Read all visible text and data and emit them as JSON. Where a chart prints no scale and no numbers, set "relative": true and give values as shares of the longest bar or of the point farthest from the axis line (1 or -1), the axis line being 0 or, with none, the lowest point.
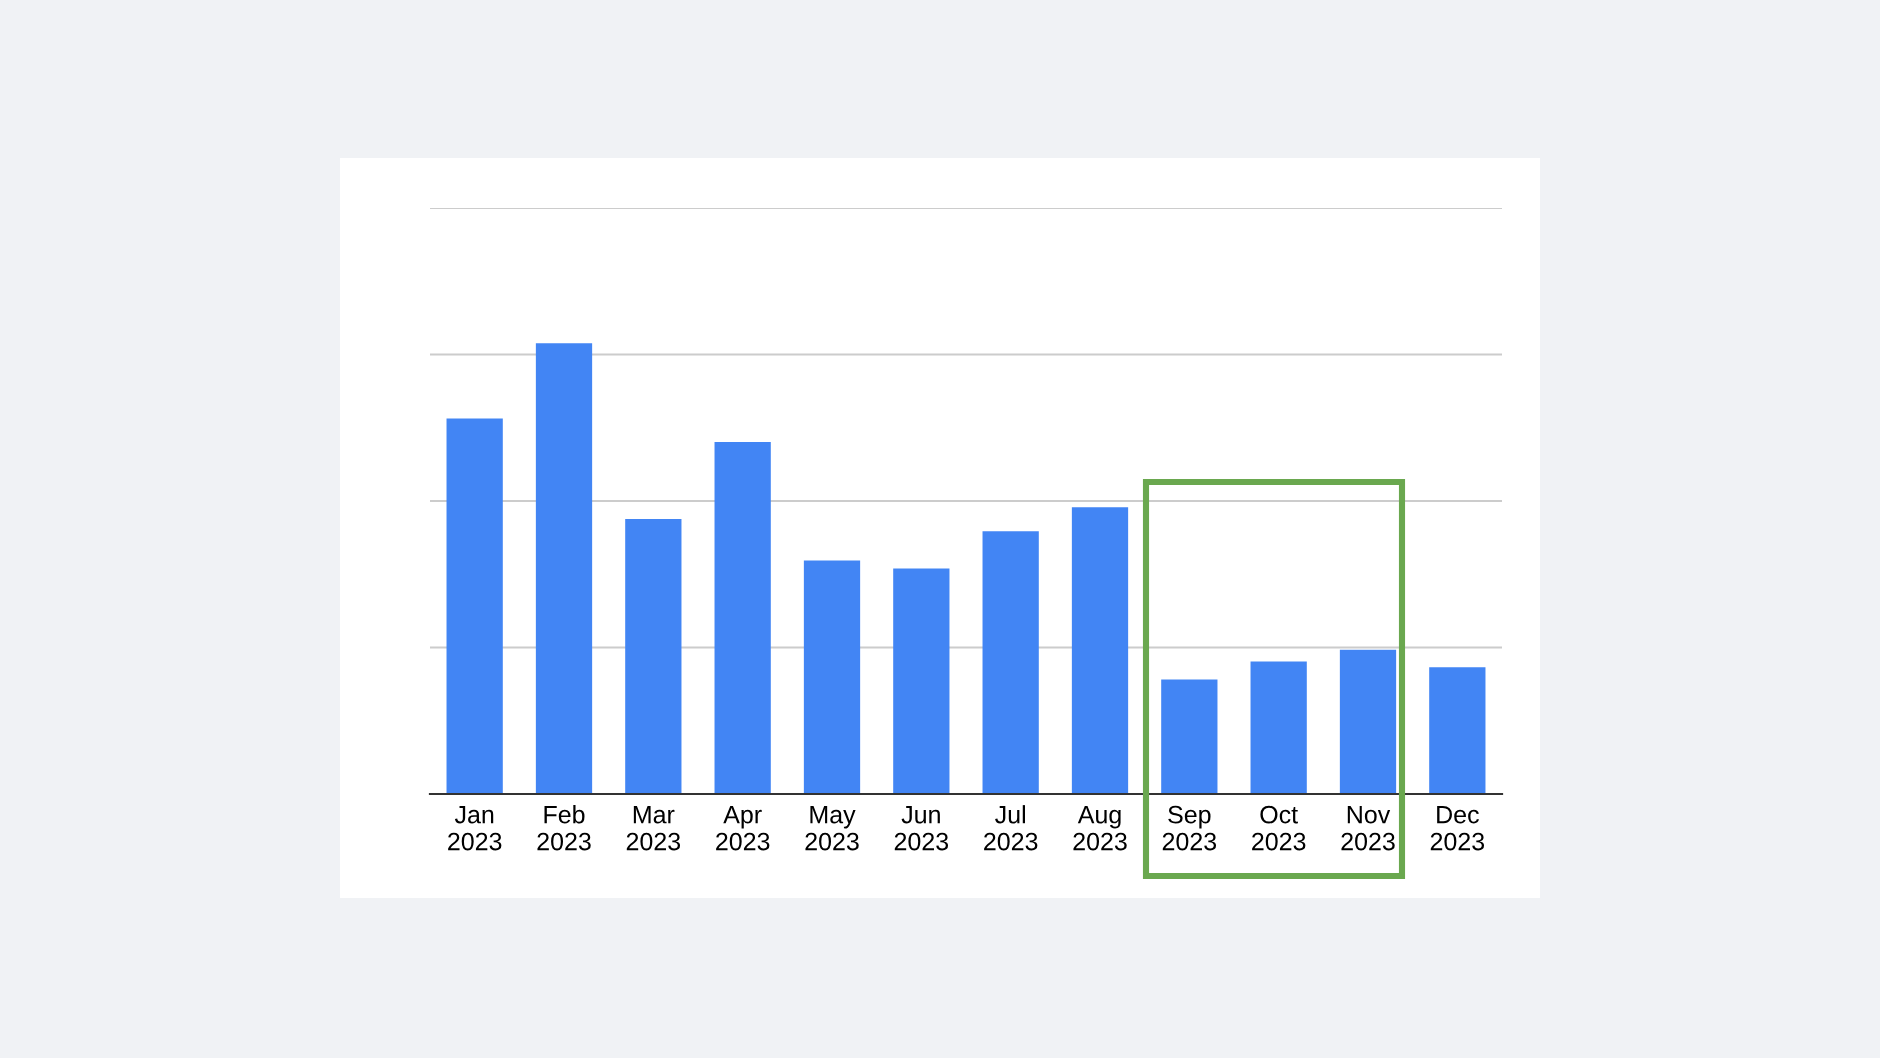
{
  "chart_data": {
    "type": "bar",
    "relative": true,
    "categories": [
      "Jan 2023",
      "Feb 2023",
      "Mar 2023",
      "Apr 2023",
      "May 2023",
      "Jun 2023",
      "Jul 2023",
      "Aug 2023",
      "Sep 2023",
      "Oct 2023",
      "Nov 2023",
      "Dec 2023"
    ],
    "values": [
      0.833,
      1,
      0.61,
      0.781,
      0.518,
      0.5,
      0.583,
      0.636,
      0.254,
      0.294,
      0.32,
      0.281
    ],
    "color": "#4285f4",
    "grid": "y"
  }
}
